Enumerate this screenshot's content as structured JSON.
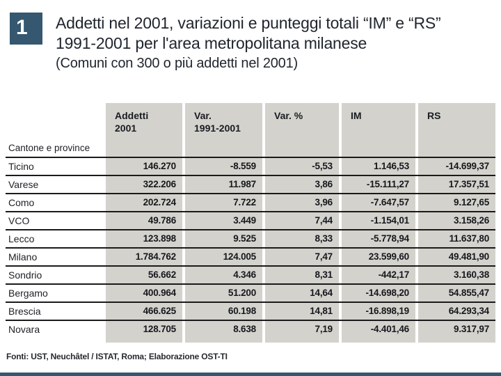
{
  "figure": {
    "number": "1",
    "title_line1": "Addetti nel 2001, variazioni e punteggi totali “IM” e “RS”",
    "title_line2": "1991-2001 per l'area metropolitana milanese",
    "subtitle": "(Comuni con 300 o più addetti nel 2001)"
  },
  "table": {
    "corner_label": "Cantone e province",
    "columns": [
      "Addetti\n2001",
      "Var.\n1991-2001",
      "Var. %",
      "IM",
      "RS"
    ],
    "rows": [
      {
        "label": "Ticino",
        "values": [
          "146.270",
          "-8.559",
          "-5,53",
          "1.146,53",
          "-14.699,37"
        ]
      },
      {
        "label": "Varese",
        "values": [
          "322.206",
          "11.987",
          "3,86",
          "-15.111,27",
          "17.357,51"
        ]
      },
      {
        "label": "Como",
        "values": [
          "202.724",
          "7.722",
          "3,96",
          "-7.647,57",
          "9.127,65"
        ]
      },
      {
        "label": "VCO",
        "values": [
          "49.786",
          "3.449",
          "7,44",
          "-1.154,01",
          "3.158,26"
        ]
      },
      {
        "label": "Lecco",
        "values": [
          "123.898",
          "9.525",
          "8,33",
          "-5.778,94",
          "11.637,80"
        ]
      },
      {
        "label": "Milano",
        "values": [
          "1.784.762",
          "124.005",
          "7,47",
          "23.599,60",
          "49.481,90"
        ]
      },
      {
        "label": "Sondrio",
        "values": [
          "56.662",
          "4.346",
          "8,31",
          "-442,17",
          "3.160,38"
        ]
      },
      {
        "label": "Bergamo",
        "values": [
          "400.964",
          "51.200",
          "14,64",
          "-14.698,20",
          "54.855,47"
        ]
      },
      {
        "label": "Brescia",
        "values": [
          "466.625",
          "60.198",
          "14,81",
          "-16.898,19",
          "64.293,34"
        ]
      },
      {
        "label": "Novara",
        "values": [
          "128.705",
          "8.638",
          "7,19",
          "-4.401,46",
          "9.317,97"
        ]
      }
    ]
  },
  "footer": {
    "source": "Fonti: UST, Neuchâtel / ISTAT, Roma; Elaborazione OST-TI"
  },
  "colors": {
    "accent": "#35576f",
    "column_bg": "#d3d2cd",
    "rule": "#1a1a1a"
  }
}
